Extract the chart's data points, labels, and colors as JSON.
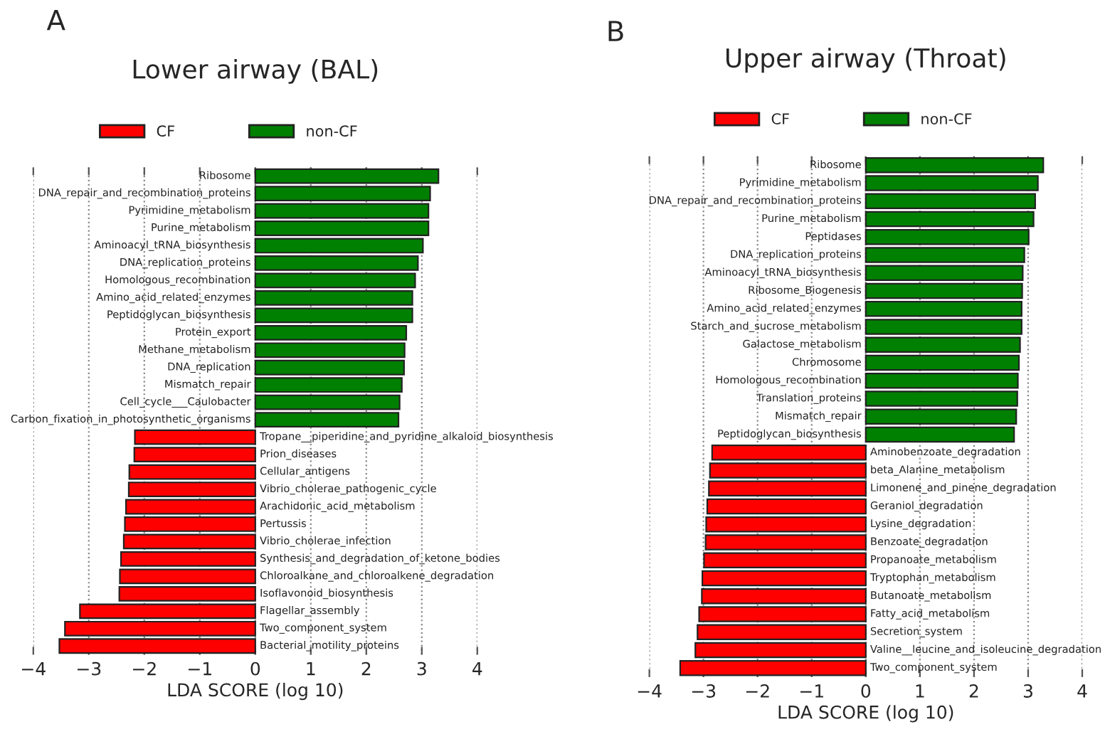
{
  "chart_data": [
    {
      "type": "bar",
      "orientation": "horizontal",
      "title": "Lower airway (BAL)",
      "xlabel": "LDA SCORE (log 10)",
      "annotations": [
        "A"
      ],
      "categories": [
        "Ribosome",
        "DNA_repair_and_recombination_proteins",
        "Pyrimidine_metabolism",
        "Purine_metabolism",
        "Aminoacyl_tRNA_biosynthesis",
        "DNA_replication_proteins",
        "Homologous_recombination",
        "Amino_acid_related_enzymes",
        "Peptidoglycan_biosynthesis",
        "Protein_export",
        "Methane_metabolism",
        "DNA_replication",
        "Mismatch_repair",
        "Cell_cycle___Caulobacter",
        "Carbon_fixation_in_photosynthetic_organisms",
        "Tropane__piperidine_and_pyridine_alkaloid_biosynthesis",
        "Prion_diseases",
        "Cellular_antigens",
        "Vibrio_cholerae_pathogenic_cycle",
        "Arachidonic_acid_metabolism",
        "Pertussis",
        "Vibrio_cholerae_infection",
        "Synthesis_and_degradation_of_ketone_bodies",
        "Chloroalkane_and_chloroalkene_degradation",
        "Isoflavonoid_biosynthesis",
        "Flagellar_assembly",
        "Two_component_system",
        "Bacterial_motility_proteins"
      ],
      "series": [
        {
          "name": "CF",
          "color": "#ff0000",
          "values": [
            null,
            null,
            null,
            null,
            null,
            null,
            null,
            null,
            null,
            null,
            null,
            null,
            null,
            null,
            null,
            -2.17,
            -2.18,
            -2.27,
            -2.28,
            -2.33,
            -2.35,
            -2.37,
            -2.42,
            -2.44,
            -2.45,
            -3.16,
            -3.43,
            -3.53
          ]
        },
        {
          "name": "non-CF",
          "color": "#008000",
          "values": [
            3.3,
            3.15,
            3.12,
            3.12,
            3.02,
            2.93,
            2.88,
            2.83,
            2.83,
            2.72,
            2.69,
            2.68,
            2.64,
            2.6,
            2.58,
            null,
            null,
            null,
            null,
            null,
            null,
            null,
            null,
            null,
            null,
            null,
            null,
            null
          ]
        }
      ],
      "xlim": [
        -4,
        4
      ],
      "xticks": [
        -4,
        -3,
        -2,
        -1,
        0,
        1,
        2,
        3,
        4
      ],
      "grid": "x",
      "legend": "top",
      "tick_labels": "x"
    },
    {
      "type": "bar",
      "orientation": "horizontal",
      "title": "Upper airway (Throat)",
      "xlabel": "LDA SCORE (log 10)",
      "annotations": [
        "B"
      ],
      "categories": [
        "Ribosome",
        "Pyrimidine_metabolism",
        "DNA_repair_and_recombination_proteins",
        "Purine_metabolism",
        "Peptidases",
        "DNA_replication_proteins",
        "Aminoacyl_tRNA_biosynthesis",
        "Ribosome_Biogenesis",
        "Amino_acid_related_enzymes",
        "Starch_and_sucrose_metabolism",
        "Galactose_metabolism",
        "Chromosome",
        "Homologous_recombination",
        "Translation_proteins",
        "Mismatch_repair",
        "Peptidoglycan_biosynthesis",
        "Aminobenzoate_degradation",
        "beta_Alanine_metabolism",
        "Limonene_and_pinene_degradation",
        "Geraniol_degradation",
        "Lysine_degradation",
        "Benzoate_degradation",
        "Propanoate_metabolism",
        "Tryptophan_metabolism",
        "Butanoate_metabolism",
        "Fatty_acid_metabolism",
        "Secretion_system",
        "Valine__leucine_and_isoleucine_degradation",
        "Two_component_system"
      ],
      "series": [
        {
          "name": "CF",
          "color": "#ff0000",
          "values": [
            null,
            null,
            null,
            null,
            null,
            null,
            null,
            null,
            null,
            null,
            null,
            null,
            null,
            null,
            null,
            null,
            -2.84,
            -2.88,
            -2.9,
            -2.93,
            -2.95,
            -2.96,
            -2.99,
            -3.02,
            -3.03,
            -3.08,
            -3.11,
            -3.15,
            -3.43
          ]
        },
        {
          "name": "non-CF",
          "color": "#008000",
          "values": [
            3.28,
            3.18,
            3.13,
            3.1,
            3.01,
            2.93,
            2.9,
            2.89,
            2.88,
            2.88,
            2.85,
            2.83,
            2.81,
            2.8,
            2.78,
            2.74,
            null,
            null,
            null,
            null,
            null,
            null,
            null,
            null,
            null,
            null,
            null,
            null,
            null
          ]
        }
      ],
      "xlim": [
        -4,
        4
      ],
      "xticks": [
        -4,
        -3,
        -2,
        -1,
        0,
        1,
        2,
        3,
        4
      ],
      "grid": "x",
      "legend": "top",
      "tick_labels": "x"
    }
  ]
}
